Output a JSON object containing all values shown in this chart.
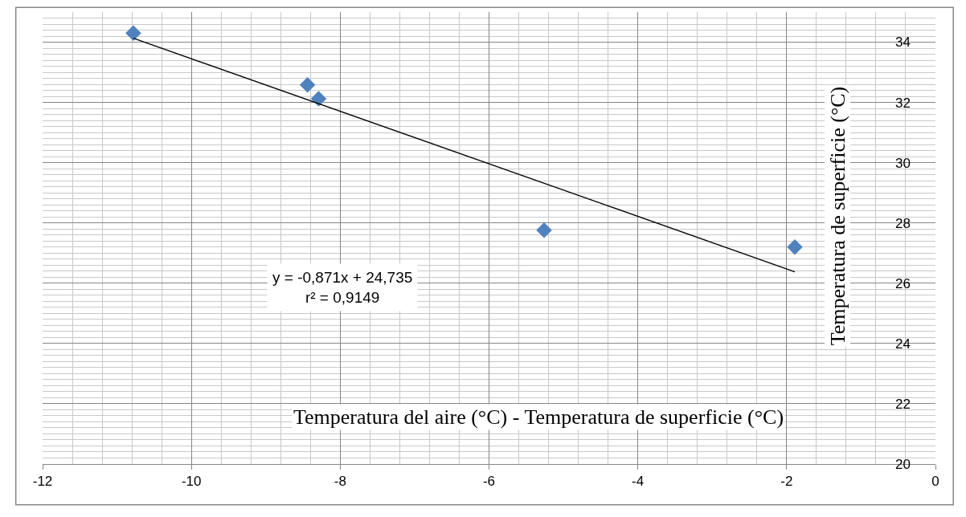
{
  "chart_data": {
    "type": "scatter",
    "xlabel": "Temperatura del aire (°C) - Temperatura de superficie (°C)",
    "ylabel": "Temperatura de superficie (°C)",
    "series": [
      {
        "color": "#4f81bd",
        "marker": "diamond",
        "x": [
          -10.78,
          -8.44,
          -8.29,
          -5.26,
          -1.89
        ],
        "values": [
          34.3,
          32.58,
          32.12,
          27.76,
          27.2
        ]
      },
      {
        "type": "line",
        "color": "#000000",
        "marker": "none",
        "x": [
          -10.78,
          -1.89
        ],
        "values": [
          34.13,
          26.38
        ]
      }
    ],
    "annotations": [
      "y = -0,871x + 24,735\nr² = 0,9149"
    ],
    "xlim": [
      -12,
      0
    ],
    "xticks": [
      -12,
      -10,
      -8,
      -6,
      -4,
      -2,
      0
    ],
    "ylim": [
      20,
      35
    ],
    "yticks": [
      20,
      22,
      24,
      26,
      28,
      30,
      32,
      34
    ],
    "grid": true
  }
}
